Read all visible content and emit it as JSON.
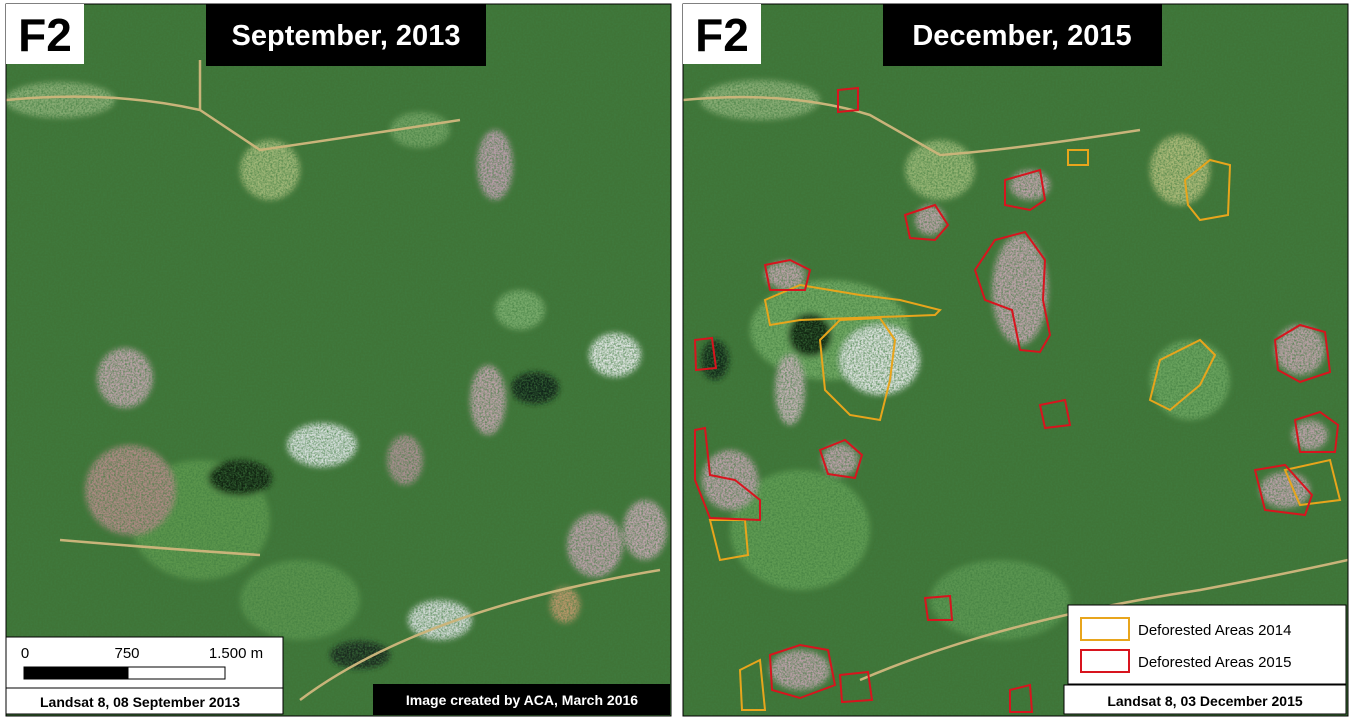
{
  "panels": [
    {
      "label": "F2",
      "title": "September, 2013",
      "scale_bar": {
        "ticks": [
          "0",
          "750",
          "1.500 m"
        ]
      },
      "caption": "Landsat 8, 08 September 2013",
      "credit": "Image created by ACA, March 2016"
    },
    {
      "label": "F2",
      "title": "December, 2015",
      "legend": [
        {
          "name": "Deforested Areas 2014",
          "color": "#e8a51c"
        },
        {
          "name": "Deforested Areas 2015",
          "color": "#d8141e"
        }
      ],
      "caption": "Landsat 8, 03 December 2015"
    }
  ]
}
